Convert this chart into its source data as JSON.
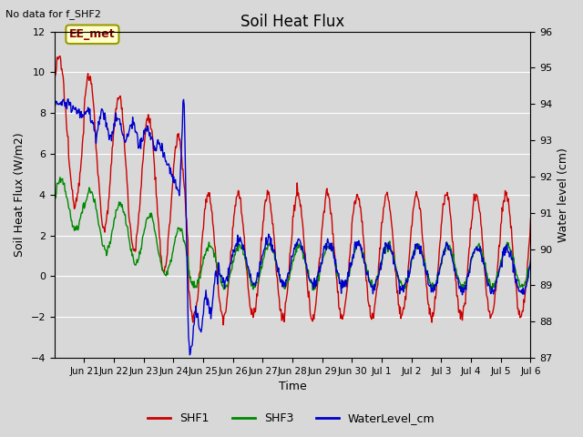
{
  "title": "Soil Heat Flux",
  "top_left_text": "No data for f_SHF2",
  "xlabel": "Time",
  "ylabel_left": "Soil Heat Flux (W/m2)",
  "ylabel_right": "Water level (cm)",
  "ylim_left": [
    -4,
    12
  ],
  "ylim_right": [
    87.0,
    96.0
  ],
  "yticks_left": [
    -4,
    -2,
    0,
    2,
    4,
    6,
    8,
    10,
    12
  ],
  "yticks_right": [
    87.0,
    88.0,
    89.0,
    90.0,
    91.0,
    92.0,
    93.0,
    94.0,
    95.0,
    96.0
  ],
  "shf1_color": "#cc0000",
  "shf3_color": "#008800",
  "wl_color": "#0000cc",
  "legend_entries": [
    "SHF1",
    "SHF3",
    "WaterLevel_cm"
  ],
  "annotation_text": "EE_met",
  "annotation_box_color": "#ffffcc",
  "annotation_border_color": "#999900",
  "bg_color": "#d8d8d8",
  "grid_color": "#ffffff"
}
